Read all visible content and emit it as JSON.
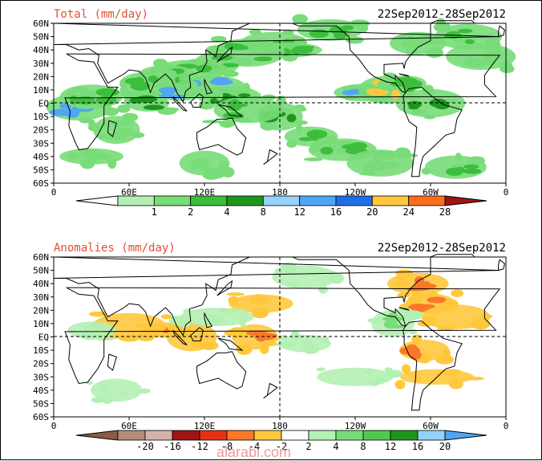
{
  "chart_data": [
    {
      "type": "heatmap",
      "title": "Total (mm/day)",
      "date_range": "22Sep2012-28Sep2012",
      "lat_labels": [
        "60N",
        "50N",
        "40N",
        "30N",
        "20N",
        "10N",
        "EQ",
        "10S",
        "20S",
        "30S",
        "40S",
        "50S",
        "60S"
      ],
      "lon_labels": [
        "0",
        "60E",
        "120E",
        "180",
        "120W",
        "60W",
        "0"
      ],
      "colorbar": {
        "labels": [
          "1",
          "2",
          "4",
          "8",
          "12",
          "16",
          "20",
          "24",
          "28"
        ],
        "colors": [
          "#ffffff",
          "#b4f0b4",
          "#78dc78",
          "#3cbe3c",
          "#1e961e",
          "#96d2fa",
          "#50a5f5",
          "#1e6ee6",
          "#ffc83c",
          "#fa6e1e",
          "#a01414"
        ]
      },
      "fields": [
        {
          "lat": 45,
          "lon": 175,
          "v": 3
        },
        {
          "lat": 40,
          "lon": 185,
          "v": 3
        },
        {
          "lat": 38,
          "lon": 155,
          "v": 3
        },
        {
          "lat": 30,
          "lon": 130,
          "v": 3
        },
        {
          "lat": 25,
          "lon": 110,
          "v": 3
        },
        {
          "lat": 20,
          "lon": 90,
          "v": 3
        },
        {
          "lat": 15,
          "lon": 75,
          "v": 3
        },
        {
          "lat": 12,
          "lon": 125,
          "v": 5
        },
        {
          "lat": 8,
          "lon": 100,
          "v": 5
        },
        {
          "lat": 5,
          "lon": 140,
          "v": 4
        },
        {
          "lat": -3,
          "lon": 20,
          "v": 5
        },
        {
          "lat": 5,
          "lon": 30,
          "v": 3
        },
        {
          "lat": 8,
          "lon": 250,
          "v": 5
        },
        {
          "lat": 10,
          "lon": 265,
          "v": 7
        },
        {
          "lat": 15,
          "lon": 280,
          "v": 3
        },
        {
          "lat": 0,
          "lon": 300,
          "v": 4
        },
        {
          "lat": -10,
          "lon": 180,
          "v": 4
        },
        {
          "lat": -25,
          "lon": 205,
          "v": 3
        },
        {
          "lat": -35,
          "lon": 230,
          "v": 3
        },
        {
          "lat": -45,
          "lon": 260,
          "v": 2
        },
        {
          "lat": -48,
          "lon": 320,
          "v": 3
        },
        {
          "lat": -40,
          "lon": 30,
          "v": 2
        },
        {
          "lat": -45,
          "lon": 120,
          "v": 2
        },
        {
          "lat": 50,
          "lon": 330,
          "v": 3
        },
        {
          "lat": 45,
          "lon": 290,
          "v": 2
        },
        {
          "lat": 55,
          "lon": 220,
          "v": 3
        },
        {
          "lat": 35,
          "lon": 340,
          "v": 2
        },
        {
          "lat": -20,
          "lon": 50,
          "v": 2
        },
        {
          "lat": 0,
          "lon": 75,
          "v": 4
        },
        {
          "lat": -5,
          "lon": 155,
          "v": 3
        }
      ]
    },
    {
      "type": "heatmap",
      "title": "Anomalies (mm/day)",
      "date_range": "22Sep2012-28Sep2012",
      "lat_labels": [
        "60N",
        "50N",
        "40N",
        "30N",
        "20N",
        "10N",
        "EQ",
        "10S",
        "20S",
        "30S",
        "40S",
        "50S",
        "60S"
      ],
      "lon_labels": [
        "0",
        "60E",
        "120E",
        "180",
        "120W",
        "60W",
        "0"
      ],
      "colorbar": {
        "labels": [
          "-20",
          "-16",
          "-12",
          "-8",
          "-4",
          "-2",
          "2",
          "4",
          "8",
          "12",
          "16",
          "20"
        ],
        "colors": [
          "#8c5a46",
          "#b48c78",
          "#d2b4aa",
          "#a01414",
          "#e63214",
          "#fa7828",
          "#ffc83c",
          "#ffffff",
          "#b4f0b4",
          "#78dc78",
          "#50c850",
          "#1e961e",
          "#96d2fa",
          "#50a5f5"
        ]
      },
      "fields": [
        {
          "lat": 5,
          "lon": 90,
          "v": -2
        },
        {
          "lat": 0,
          "lon": 110,
          "v": -1
        },
        {
          "lat": 0,
          "lon": 160,
          "v": -2
        },
        {
          "lat": 25,
          "lon": 165,
          "v": -1
        },
        {
          "lat": 40,
          "lon": 290,
          "v": -2
        },
        {
          "lat": 25,
          "lon": 300,
          "v": -2
        },
        {
          "lat": -10,
          "lon": 295,
          "v": -2
        },
        {
          "lat": -30,
          "lon": 305,
          "v": -1
        },
        {
          "lat": 15,
          "lon": 320,
          "v": -1
        },
        {
          "lat": 8,
          "lon": 60,
          "v": -1
        },
        {
          "lat": 10,
          "lon": 270,
          "v": 2
        },
        {
          "lat": -5,
          "lon": 200,
          "v": 1
        },
        {
          "lat": -30,
          "lon": 240,
          "v": 1
        },
        {
          "lat": 5,
          "lon": 30,
          "v": 1
        },
        {
          "lat": 15,
          "lon": 130,
          "v": 1
        },
        {
          "lat": 45,
          "lon": 200,
          "v": 1
        },
        {
          "lat": -40,
          "lon": 50,
          "v": 1
        }
      ]
    }
  ],
  "watermark": "alarabi.com"
}
